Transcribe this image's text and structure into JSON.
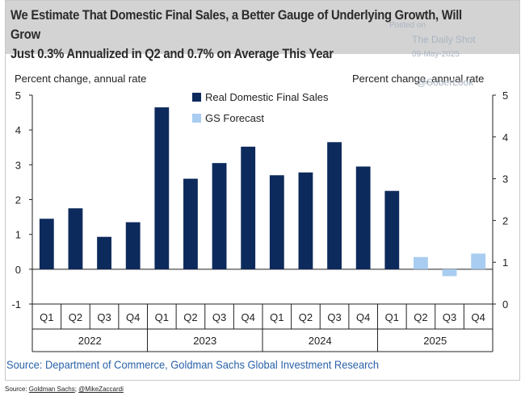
{
  "header": {
    "title_line1": "We Estimate That Domestic Final Sales, a Better Gauge of Underlying Growth, Will Grow",
    "title_line2": "Just 0.3% Annualized in Q2 and 0.7% on Average This Year"
  },
  "watermark": {
    "posted_on": "Posted on",
    "brand": "The Daily Shot",
    "date": "09-May-2025",
    "handle": "@SoberLook"
  },
  "footer": {
    "source": "Source: Department of Commerce, Goldman Sachs Global Investment Research",
    "credit_prefix": "Source: ",
    "credit_link1": "Goldman Sachs",
    "credit_sep": "; ",
    "credit_link2": "@MikeZaccardi"
  },
  "colors": {
    "actual": "#0d2a5c",
    "forecast": "#a8cdf0",
    "axis": "#222222",
    "title_band": "#d3d3d3",
    "source_text": "#2a62a8"
  },
  "chart_data": {
    "type": "bar",
    "title": "We Estimate That Domestic Final Sales, a Better Gauge of Underlying Growth, Will Grow Just 0.3% Annualized in Q2 and 0.7% on Average This Year",
    "ylabel_left": "Percent change, annual rate",
    "ylabel_right": "Percent change, annual rate",
    "xlabel": "",
    "ylim_left": [
      -1,
      5
    ],
    "yticks_left": [
      "-1",
      "0",
      "1",
      "2",
      "3",
      "4",
      "5"
    ],
    "ylim_right": [
      0,
      5
    ],
    "yticks_right": [
      "0",
      "1",
      "2",
      "3",
      "4",
      "5"
    ],
    "grid": false,
    "legend_position": "top-center",
    "categories": [
      "Q1",
      "Q2",
      "Q3",
      "Q4",
      "Q1",
      "Q2",
      "Q3",
      "Q4",
      "Q1",
      "Q2",
      "Q3",
      "Q4",
      "Q1",
      "Q2",
      "Q3",
      "Q4"
    ],
    "year_groups": [
      {
        "label": "2022",
        "count": 4
      },
      {
        "label": "2023",
        "count": 4
      },
      {
        "label": "2024",
        "count": 4
      },
      {
        "label": "2025",
        "count": 4
      }
    ],
    "series": [
      {
        "name": "Real Domestic Final Sales",
        "color": "#0d2a5c",
        "values": [
          1.45,
          1.75,
          0.93,
          1.35,
          4.65,
          2.6,
          3.05,
          3.52,
          2.7,
          2.78,
          3.65,
          2.95,
          2.25,
          null,
          null,
          null
        ]
      },
      {
        "name": "GS Forecast",
        "color": "#a8cdf0",
        "values": [
          null,
          null,
          null,
          null,
          null,
          null,
          null,
          null,
          null,
          null,
          null,
          null,
          null,
          0.35,
          -0.2,
          0.45
        ]
      }
    ]
  }
}
